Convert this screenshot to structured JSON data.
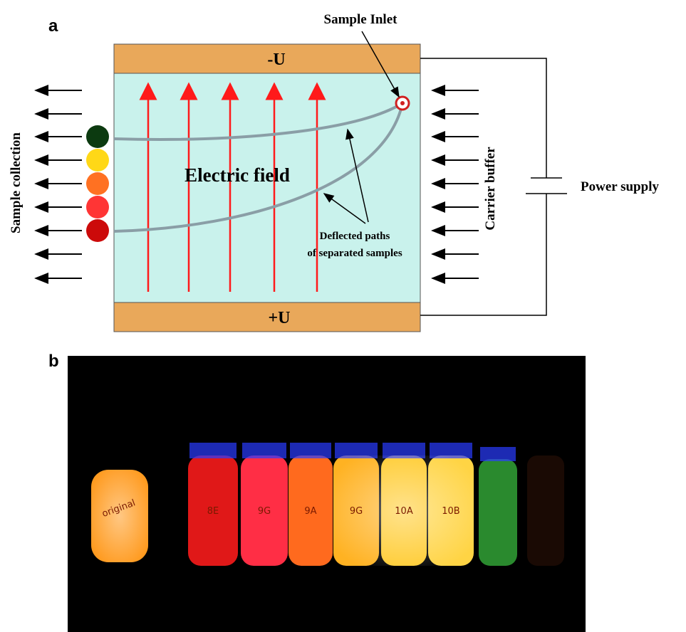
{
  "panel_a": {
    "label": "a",
    "sample_inlet": "Sample Inlet",
    "top_electrode": "-U",
    "bottom_electrode": "+U",
    "field_label": "Electric field",
    "deflected_line1": "Deflected paths",
    "deflected_line2": "of separated samples",
    "left_label": "Sample collection",
    "right_label": "Carrier buffer",
    "power_label": "Power supply"
  },
  "panel_b": {
    "label": "b",
    "vial_labels": [
      "original",
      "8E",
      "9G",
      "9A",
      "9G",
      "10A",
      "10B"
    ]
  }
}
